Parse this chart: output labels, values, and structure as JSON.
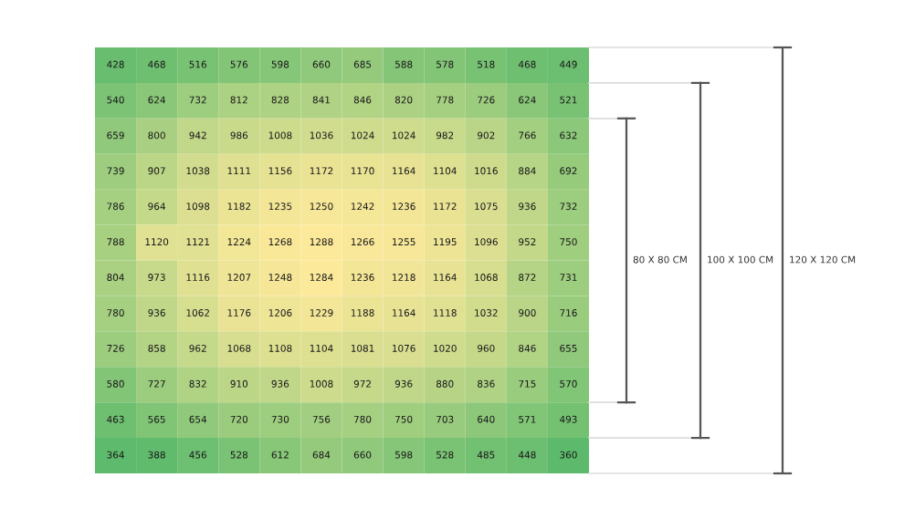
{
  "chart_data": {
    "type": "heatmap",
    "categories": [
      null,
      null,
      null,
      null,
      null,
      null,
      null,
      null,
      null,
      null,
      null,
      null
    ],
    "y_categories": [
      null,
      null,
      null,
      null,
      null,
      null,
      null,
      null,
      null,
      null,
      null,
      null
    ],
    "cells": [
      [
        428,
        468,
        516,
        576,
        598,
        660,
        685,
        588,
        578,
        518,
        468,
        449
      ],
      [
        540,
        624,
        732,
        812,
        828,
        841,
        846,
        820,
        778,
        726,
        624,
        521
      ],
      [
        659,
        800,
        942,
        986,
        1008,
        1036,
        1024,
        1024,
        982,
        902,
        766,
        632
      ],
      [
        739,
        907,
        1038,
        1111,
        1156,
        1172,
        1170,
        1164,
        1104,
        1016,
        884,
        692
      ],
      [
        786,
        964,
        1098,
        1182,
        1235,
        1250,
        1242,
        1236,
        1172,
        1075,
        936,
        732
      ],
      [
        788,
        1120,
        1121,
        1224,
        1268,
        1288,
        1266,
        1255,
        1195,
        1096,
        952,
        750
      ],
      [
        804,
        973,
        1116,
        1207,
        1248,
        1284,
        1236,
        1218,
        1164,
        1068,
        872,
        731
      ],
      [
        780,
        936,
        1062,
        1176,
        1206,
        1229,
        1188,
        1164,
        1118,
        1032,
        900,
        716
      ],
      [
        726,
        858,
        962,
        1068,
        1108,
        1104,
        1081,
        1076,
        1020,
        960,
        846,
        655
      ],
      [
        580,
        727,
        832,
        910,
        936,
        1008,
        972,
        936,
        880,
        836,
        715,
        570
      ],
      [
        463,
        565,
        654,
        720,
        730,
        756,
        780,
        750,
        703,
        640,
        571,
        493
      ],
      [
        364,
        388,
        456,
        528,
        612,
        684,
        660,
        598,
        528,
        485,
        448,
        360
      ]
    ],
    "colors": [
      "#5dba6c",
      "#fde99a"
    ],
    "data_labels": true,
    "annotations": [
      "80 X 80 CM",
      "100 X 100 CM",
      "120 X 120 CM"
    ]
  }
}
